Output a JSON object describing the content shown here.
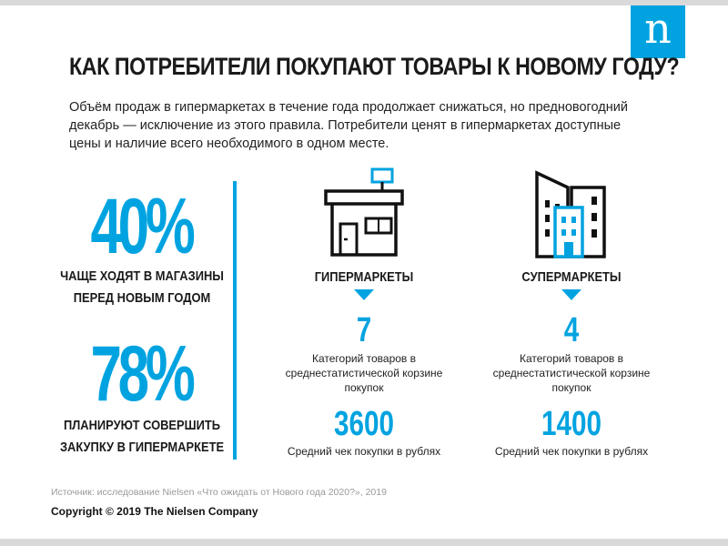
{
  "brand": {
    "logo_letter": "n"
  },
  "title": "КАК ПОТРЕБИТЕЛИ ПОКУПАЮТ ТОВАРЫ К НОВОМУ ГОДУ?",
  "intro": {
    "line1": "Объём продаж в гипермаркетах в течение года продолжает снижаться, но предновогодний",
    "line2": "декабрь — исключение из этого правила. Потребители ценят в гипермаркетах доступные",
    "line3": "цены и наличие всего необходимого в одном месте."
  },
  "stats": [
    {
      "value": "40%",
      "label_line1": "ЧАЩЕ ХОДЯТ В МАГАЗИНЫ",
      "label_line2": "ПЕРЕД НОВЫМ ГОДОМ"
    },
    {
      "value": "78%",
      "label_line1": "ПЛАНИРУЮТ СОВЕРШИТЬ",
      "label_line2": "ЗАКУПКУ В ГИПЕРМАРКЕТЕ"
    }
  ],
  "columns": [
    {
      "icon": "store-icon",
      "heading": "ГИПЕРМАРКЕТЫ",
      "count": "7",
      "count_label_line1": "Категорий товаров в",
      "count_label_line2": "среднестатистической корзине",
      "count_label_line3": "покупок",
      "avg_check": "3600",
      "avg_check_label": "Средний чек покупки в рублях"
    },
    {
      "icon": "buildings-icon",
      "heading": "СУПЕРМАРКЕТЫ",
      "count": "4",
      "count_label_line1": "Категорий товаров в",
      "count_label_line2": "среднестатистической корзине",
      "count_label_line3": "покупок",
      "avg_check": "1400",
      "avg_check_label": "Средний чек покупки в рублях"
    }
  ],
  "source": "Источник: исследование Nielsen «Что ожидать от Нового года 2020?», 2019",
  "copyright": "Copyright © 2019 The Nielsen Company",
  "colors": {
    "accent": "#00a3e0",
    "text": "#1a1a1a",
    "muted": "#999999",
    "frame": "#d9d9d9"
  }
}
